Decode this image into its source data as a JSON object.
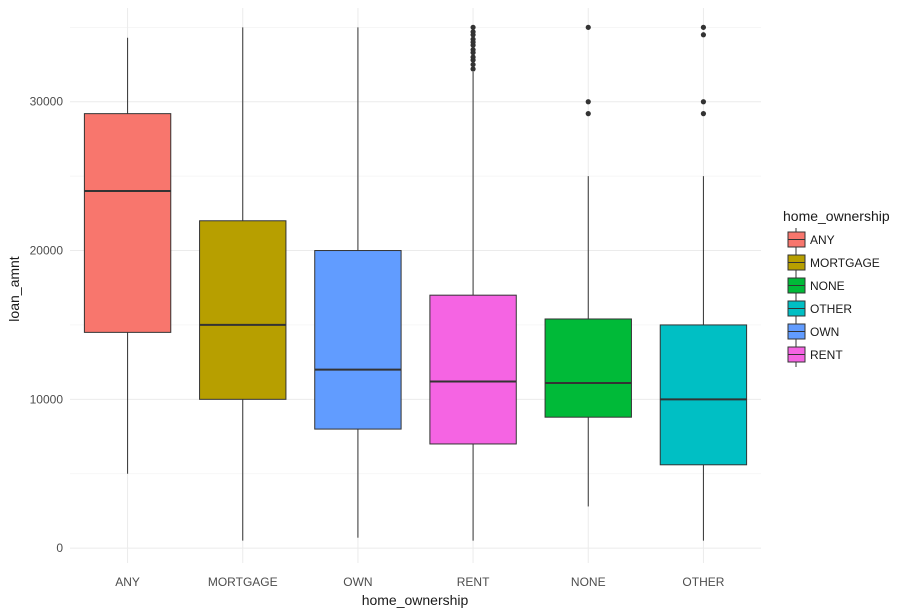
{
  "chart_data": {
    "type": "boxplot",
    "xlabel": "home_ownership",
    "ylabel": "loan_amnt",
    "ylim": [
      -1000,
      36300
    ],
    "y_ticks": [
      0,
      10000,
      20000,
      30000
    ],
    "y_tick_labels": [
      "0",
      "10000",
      "20000",
      "30000"
    ],
    "grid": true,
    "legend_position": "right",
    "legend_title": "home_ownership",
    "categories": [
      "ANY",
      "MORTGAGE",
      "OWN",
      "RENT",
      "NONE",
      "OTHER"
    ],
    "boxes": [
      {
        "category": "ANY",
        "whisker_low": 5000,
        "q1": 14500,
        "median": 24000,
        "q3": 29200,
        "whisker_high": 34300,
        "outliers": [],
        "color": "#F8766D"
      },
      {
        "category": "MORTGAGE",
        "whisker_low": 500,
        "q1": 10000,
        "median": 15000,
        "q3": 22000,
        "whisker_high": 35000,
        "outliers": [],
        "color": "#B79F00"
      },
      {
        "category": "OWN",
        "whisker_low": 700,
        "q1": 8000,
        "median": 12000,
        "q3": 20000,
        "whisker_high": 35000,
        "outliers": [],
        "color": "#619CFF"
      },
      {
        "category": "RENT",
        "whisker_low": 500,
        "q1": 7000,
        "median": 11200,
        "q3": 17000,
        "whisker_high": 32000,
        "outliers": [
          32200,
          32500,
          32800,
          33000,
          33300,
          33500,
          33800,
          34000,
          34200,
          34500,
          34700,
          35000
        ],
        "color": "#F564E3"
      },
      {
        "category": "NONE",
        "whisker_low": 2800,
        "q1": 8800,
        "median": 11100,
        "q3": 15400,
        "whisker_high": 25000,
        "outliers": [
          29200,
          30000,
          35000
        ],
        "color": "#00BA38"
      },
      {
        "category": "OTHER",
        "whisker_low": 500,
        "q1": 5600,
        "median": 10000,
        "q3": 15000,
        "whisker_high": 25000,
        "outliers": [
          29200,
          30000,
          34500,
          35000
        ],
        "color": "#00BFC4"
      }
    ],
    "legend": [
      {
        "label": "ANY",
        "color": "#F8766D"
      },
      {
        "label": "MORTGAGE",
        "color": "#B79F00"
      },
      {
        "label": "NONE",
        "color": "#00BA38"
      },
      {
        "label": "OTHER",
        "color": "#00BFC4"
      },
      {
        "label": "OWN",
        "color": "#619CFF"
      },
      {
        "label": "RENT",
        "color": "#F564E3"
      }
    ]
  }
}
